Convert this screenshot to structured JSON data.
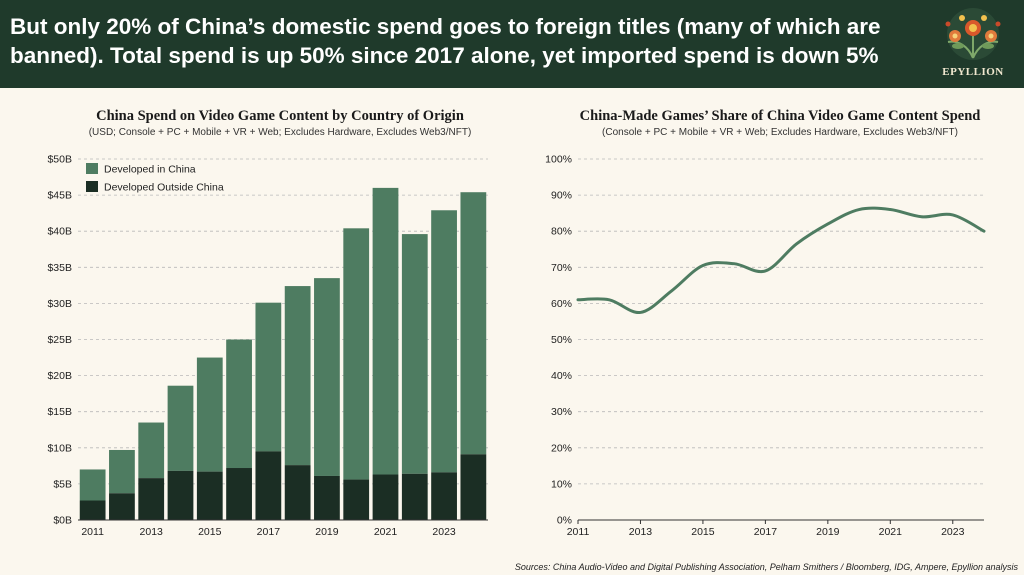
{
  "header": {
    "headline": "But only 20% of China’s domestic spend goes to foreign titles (many of which are banned). Total spend is up 50% since 2017 alone, yet imported spend is down 5%",
    "brand": "EPYLLION"
  },
  "colors": {
    "banner": "#1f3a2b",
    "developed_in_china": "#4e7c61",
    "developed_outside_china": "#1b2e24",
    "line": "#4e7c61",
    "background": "#fbf7ee"
  },
  "left_panel": {
    "title": "China Spend on Video Game Content by Country of Origin",
    "subtitle": "(USD; Console + PC + Mobile + VR + Web; Excludes Hardware, Excludes Web3/NFT)"
  },
  "right_panel": {
    "title": "China-Made Games’ Share of China Video Game Content Spend",
    "subtitle": "(Console + PC + Mobile + VR + Web; Excludes Hardware, Excludes Web3/NFT)"
  },
  "sources": "Sources: China Audio-Video and Digital Publishing Association, Pelham Smithers / Bloomberg, IDG, Ampere, Epyllion analysis",
  "chart_data": [
    {
      "type": "bar",
      "stacked": true,
      "categories": [
        "2011",
        "2012",
        "2013",
        "2014",
        "2015",
        "2016",
        "2017",
        "2018",
        "2019",
        "2020",
        "2021",
        "2022",
        "2023",
        "2024"
      ],
      "x_tick_labels": [
        "2011",
        "2013",
        "2015",
        "2017",
        "2019",
        "2021",
        "2023"
      ],
      "y_tick_labels": [
        "$0B",
        "$5B",
        "$10B",
        "$15B",
        "$20B",
        "$25B",
        "$30B",
        "$35B",
        "$40B",
        "$45B",
        "$50B"
      ],
      "ylim": [
        0,
        50
      ],
      "grid": true,
      "legend_position": "top-left",
      "series": [
        {
          "name": "Developed Outside China",
          "values": [
            2.7,
            3.7,
            5.8,
            6.8,
            6.7,
            7.2,
            9.5,
            7.6,
            6.1,
            5.6,
            6.3,
            6.4,
            6.6,
            9.1
          ]
        },
        {
          "name": "Developed in China",
          "values": [
            4.3,
            6.0,
            7.7,
            11.8,
            15.8,
            17.8,
            20.6,
            24.8,
            27.4,
            34.8,
            39.7,
            33.2,
            36.3,
            36.3
          ]
        }
      ]
    },
    {
      "type": "line",
      "x": [
        2011,
        2012,
        2013,
        2014,
        2015,
        2016,
        2017,
        2018,
        2019,
        2020,
        2021,
        2022,
        2023,
        2024
      ],
      "x_tick_labels": [
        "2011",
        "2013",
        "2015",
        "2017",
        "2019",
        "2021",
        "2023"
      ],
      "y_tick_labels": [
        "0%",
        "10%",
        "20%",
        "30%",
        "40%",
        "50%",
        "60%",
        "70%",
        "80%",
        "90%",
        "100%"
      ],
      "ylim": [
        0,
        100
      ],
      "grid": true,
      "series": [
        {
          "values": [
            61,
            61,
            57.5,
            63.5,
            70.5,
            71,
            69,
            76.5,
            82,
            86,
            86,
            84,
            84.5,
            80
          ]
        }
      ]
    }
  ]
}
